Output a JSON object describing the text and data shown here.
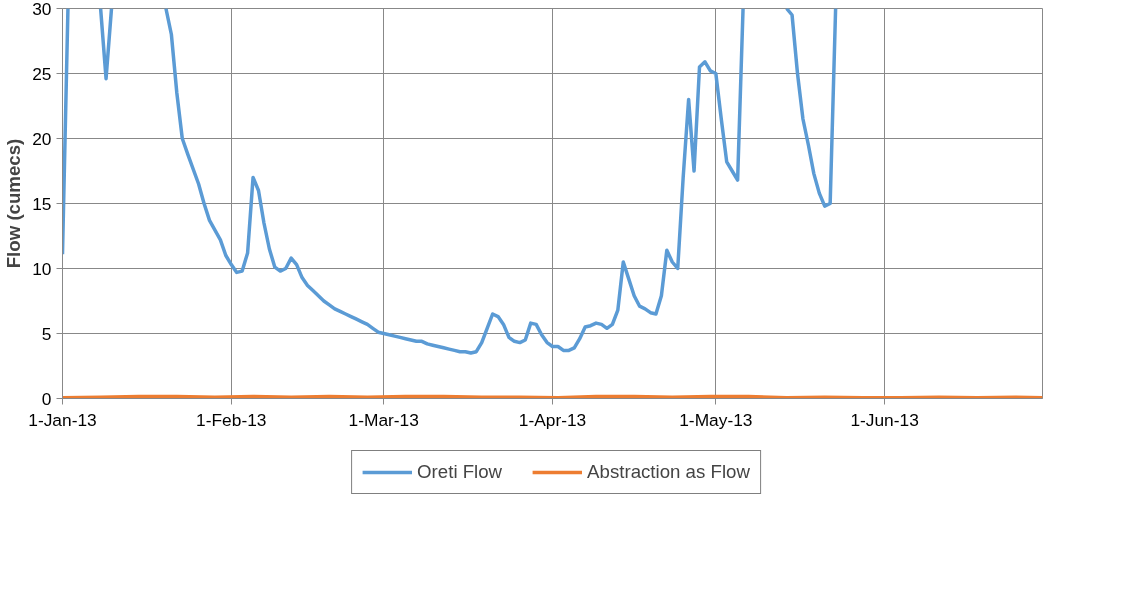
{
  "chart_data": {
    "type": "line",
    "ylabel": "Flow (cumecs)",
    "xlim": [
      "2013-01-01",
      "2013-06-30"
    ],
    "ylim": [
      0,
      30
    ],
    "yticks": [
      0,
      5,
      10,
      15,
      20,
      25,
      30
    ],
    "xticks": [
      {
        "value": "2013-01-01",
        "label": "1-Jan-13"
      },
      {
        "value": "2013-02-01",
        "label": "1-Feb-13"
      },
      {
        "value": "2013-03-01",
        "label": "1-Mar-13"
      },
      {
        "value": "2013-04-01",
        "label": "1-Apr-13"
      },
      {
        "value": "2013-05-01",
        "label": "1-May-13"
      },
      {
        "value": "2013-06-01",
        "label": "1-Jun-13"
      }
    ],
    "grid": true,
    "legend": "bottom",
    "line_style": "solid",
    "marker": "none",
    "series": [
      {
        "name": "Oreti Flow",
        "color": "#5b9bd5",
        "x": [
          "2013-01-01",
          "2013-01-02",
          "2013-01-05",
          "2013-01-08",
          "2013-01-09",
          "2013-01-10",
          "2013-01-15",
          "2013-01-20",
          "2013-01-21",
          "2013-01-22",
          "2013-01-23",
          "2013-01-24",
          "2013-01-26",
          "2013-01-27",
          "2013-01-28",
          "2013-01-30",
          "2013-01-31",
          "2013-02-01",
          "2013-02-02",
          "2013-02-03",
          "2013-02-04",
          "2013-02-05",
          "2013-02-06",
          "2013-02-07",
          "2013-02-08",
          "2013-02-09",
          "2013-02-10",
          "2013-02-11",
          "2013-02-12",
          "2013-02-13",
          "2013-02-14",
          "2013-02-15",
          "2013-02-16",
          "2013-02-17",
          "2013-02-18",
          "2013-02-19",
          "2013-02-20",
          "2013-02-21",
          "2013-02-22",
          "2013-02-23",
          "2013-02-24",
          "2013-02-25",
          "2013-02-26",
          "2013-02-27",
          "2013-02-28",
          "2013-03-01",
          "2013-03-02",
          "2013-03-03",
          "2013-03-04",
          "2013-03-05",
          "2013-03-06",
          "2013-03-07",
          "2013-03-08",
          "2013-03-09",
          "2013-03-10",
          "2013-03-11",
          "2013-03-12",
          "2013-03-13",
          "2013-03-14",
          "2013-03-15",
          "2013-03-16",
          "2013-03-17",
          "2013-03-18",
          "2013-03-19",
          "2013-03-20",
          "2013-03-21",
          "2013-03-22",
          "2013-03-23",
          "2013-03-24",
          "2013-03-25",
          "2013-03-26",
          "2013-03-27",
          "2013-03-28",
          "2013-03-29",
          "2013-03-30",
          "2013-03-31",
          "2013-04-01",
          "2013-04-02",
          "2013-04-03",
          "2013-04-04",
          "2013-04-05",
          "2013-04-06",
          "2013-04-07",
          "2013-04-08",
          "2013-04-09",
          "2013-04-10",
          "2013-04-11",
          "2013-04-12",
          "2013-04-13",
          "2013-04-14",
          "2013-04-15",
          "2013-04-16",
          "2013-04-17",
          "2013-04-18",
          "2013-04-19",
          "2013-04-20",
          "2013-04-21",
          "2013-04-22",
          "2013-04-23",
          "2013-04-24",
          "2013-04-25",
          "2013-04-26",
          "2013-04-27",
          "2013-04-28",
          "2013-04-29",
          "2013-04-30",
          "2013-05-01",
          "2013-05-02",
          "2013-05-03",
          "2013-05-04",
          "2013-05-05",
          "2013-05-06",
          "2013-05-10",
          "2013-05-14",
          "2013-05-15",
          "2013-05-16",
          "2013-05-17",
          "2013-05-18",
          "2013-05-19",
          "2013-05-20",
          "2013-05-21",
          "2013-05-22",
          "2013-05-23"
        ],
        "values": [
          11.1,
          30,
          null,
          30,
          24.6,
          30,
          null,
          30,
          28,
          23.5,
          20,
          18.8,
          16.5,
          15,
          13.7,
          12.2,
          11,
          10.3,
          9.7,
          9.8,
          11.2,
          17,
          16,
          13.5,
          11.5,
          10.1,
          9.8,
          10,
          10.8,
          10.3,
          9.3,
          8.7,
          8.3,
          7.9,
          7.5,
          7.2,
          6.9,
          6.7,
          6.5,
          6.3,
          6.1,
          5.9,
          5.7,
          5.4,
          5.1,
          5,
          4.9,
          4.8,
          4.7,
          4.6,
          4.5,
          4.4,
          4.4,
          4.2,
          4.1,
          4,
          3.9,
          3.8,
          3.7,
          3.6,
          3.6,
          3.5,
          3.6,
          4.3,
          5.4,
          6.5,
          6.3,
          5.7,
          4.7,
          4.4,
          4.3,
          4.5,
          5.8,
          5.7,
          4.9,
          4.3,
          4,
          4,
          3.7,
          3.7,
          3.9,
          4.6,
          5.5,
          5.6,
          5.8,
          5.7,
          5.4,
          5.7,
          6.8,
          10.5,
          9.2,
          7.9,
          7.1,
          6.9,
          6.6,
          6.5,
          7.9,
          11.4,
          10.5,
          10,
          17,
          23,
          17.5,
          25.5,
          25.9,
          25.2,
          25,
          21.5,
          18.2,
          17.5,
          16.8,
          30,
          null,
          30,
          29.5,
          25,
          21.5,
          19.5,
          17.3,
          15.8,
          14.8,
          15,
          30
        ]
      },
      {
        "name": "Abstraction as Flow",
        "color": "#ed7d31",
        "x": [
          "2013-01-01",
          "2013-01-08",
          "2013-01-15",
          "2013-01-22",
          "2013-01-29",
          "2013-02-05",
          "2013-02-12",
          "2013-02-19",
          "2013-02-26",
          "2013-03-05",
          "2013-03-12",
          "2013-03-19",
          "2013-03-26",
          "2013-04-02",
          "2013-04-09",
          "2013-04-16",
          "2013-04-23",
          "2013-04-30",
          "2013-05-07",
          "2013-05-14",
          "2013-05-21",
          "2013-05-28",
          "2013-06-04",
          "2013-06-11",
          "2013-06-18",
          "2013-06-25",
          "2013-06-30"
        ],
        "values": [
          0.05,
          0.1,
          0.15,
          0.15,
          0.1,
          0.15,
          0.1,
          0.15,
          0.1,
          0.15,
          0.15,
          0.1,
          0.1,
          0.05,
          0.15,
          0.15,
          0.1,
          0.15,
          0.15,
          0.05,
          0.1,
          0.05,
          0.05,
          0.1,
          0.05,
          0.1,
          0.05
        ]
      }
    ]
  }
}
